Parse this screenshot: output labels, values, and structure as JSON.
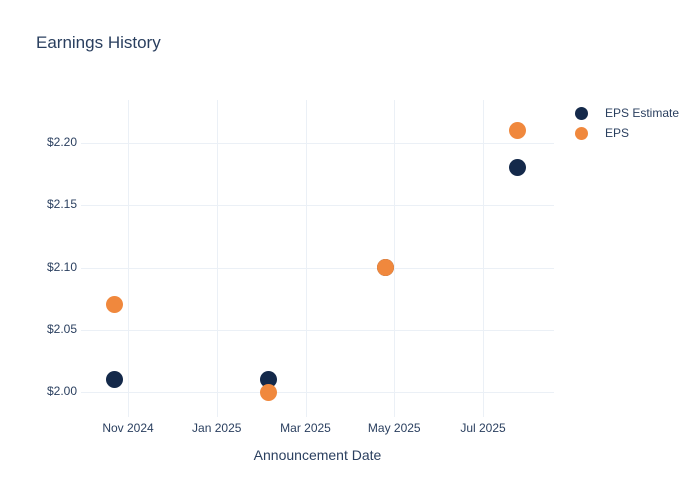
{
  "colors": {
    "background": "#ffffff",
    "grid": "#ebf0f6",
    "text": "#2a3f5f",
    "eps_estimate": "#14294a",
    "eps": "#f0883d"
  },
  "chart_data": {
    "type": "scatter",
    "title": "Earnings History",
    "xlabel": "Announcement Date",
    "ylabel": "",
    "grid": true,
    "legend_position": "right",
    "x_tick_labels": [
      "Nov 2024",
      "Jan 2025",
      "Mar 2025",
      "May 2025",
      "Jul 2025"
    ],
    "y_ticks": [
      2.0,
      2.05,
      2.1,
      2.15,
      2.2
    ],
    "y_tick_labels": [
      "$2.00",
      "$2.05",
      "$2.10",
      "$2.15",
      "$2.20"
    ],
    "ylim": [
      1.98,
      2.235
    ],
    "xlim": [
      "2024-09-30",
      "2025-08-19"
    ],
    "series": [
      {
        "name": "EPS Estimate",
        "color": "#14294a",
        "points": [
          {
            "date": "2024-10-22",
            "value": 2.01
          },
          {
            "date": "2025-02-06",
            "value": 2.01
          },
          {
            "date": "2025-04-25",
            "value": 2.1
          },
          {
            "date": "2025-07-24",
            "value": 2.18
          }
        ]
      },
      {
        "name": "EPS",
        "color": "#f0883d",
        "points": [
          {
            "date": "2024-10-22",
            "value": 2.07
          },
          {
            "date": "2025-02-06",
            "value": 2.0
          },
          {
            "date": "2025-04-25",
            "value": 2.1
          },
          {
            "date": "2025-07-24",
            "value": 2.21
          }
        ]
      }
    ]
  }
}
